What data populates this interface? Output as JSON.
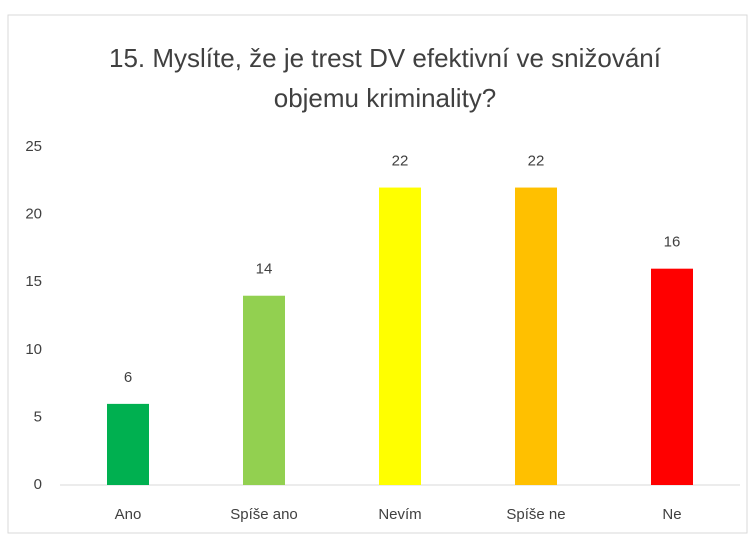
{
  "chart_data": {
    "type": "bar",
    "title": [
      "15. Myslíte, že je trest DV efektivní ve snižování",
      "objemu kriminality?"
    ],
    "categories": [
      "Ano",
      "Spíše ano",
      "Nevím",
      "Spíše ne",
      "Ne"
    ],
    "values": [
      6,
      14,
      22,
      22,
      16
    ],
    "colors": [
      "#00b050",
      "#92d050",
      "#ffff00",
      "#ffc000",
      "#ff0000"
    ],
    "ylim": [
      0,
      25
    ],
    "yticks": [
      0,
      5,
      10,
      15,
      20,
      25
    ],
    "grid": false,
    "data_labels": true
  }
}
